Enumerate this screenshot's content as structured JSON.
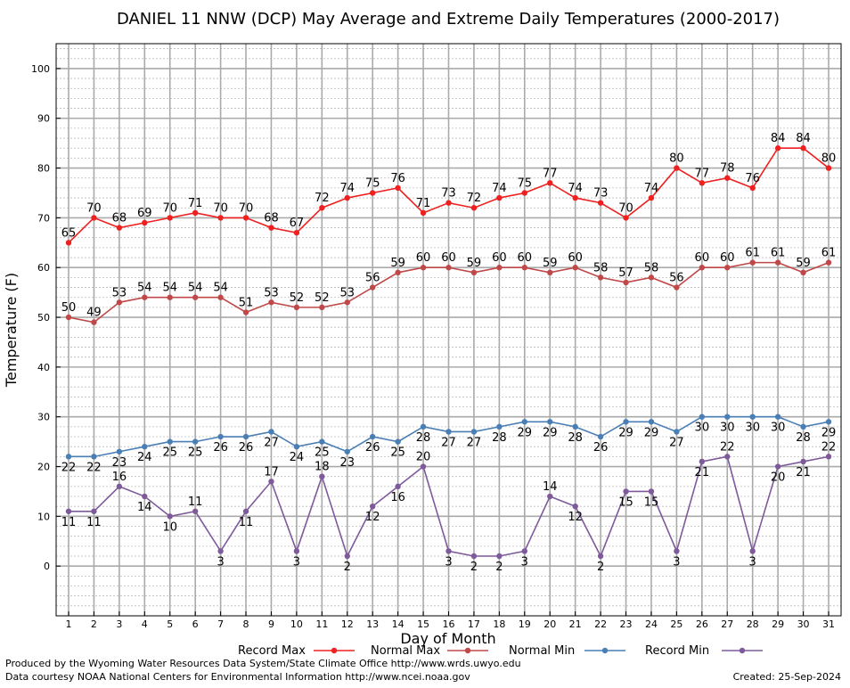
{
  "chart_data": {
    "type": "line",
    "title": "DANIEL 11 NNW (DCP) May Average and Extreme Daily Temperatures (2000-2017)",
    "xlabel": "Day of Month",
    "ylabel": "Temperature (F)",
    "x": [
      1,
      2,
      3,
      4,
      5,
      6,
      7,
      8,
      9,
      10,
      11,
      12,
      13,
      14,
      15,
      16,
      17,
      18,
      19,
      20,
      21,
      22,
      23,
      24,
      25,
      26,
      27,
      28,
      29,
      30,
      31
    ],
    "ylim": [
      -10,
      105
    ],
    "yticks": [
      0,
      10,
      20,
      30,
      40,
      50,
      60,
      70,
      80,
      90,
      100
    ],
    "grid": true,
    "legend_position": "bottom",
    "series": [
      {
        "name": "Record Max",
        "color": "#ee2020",
        "values": [
          65,
          70,
          68,
          69,
          70,
          71,
          70,
          70,
          68,
          67,
          72,
          74,
          75,
          76,
          71,
          73,
          72,
          74,
          75,
          77,
          74,
          73,
          70,
          74,
          80,
          77,
          78,
          76,
          84,
          84,
          80
        ]
      },
      {
        "name": "Normal Max",
        "color": "#c04848",
        "values": [
          50,
          49,
          53,
          54,
          54,
          54,
          54,
          51,
          53,
          52,
          52,
          53,
          56,
          59,
          60,
          60,
          59,
          60,
          60,
          59,
          60,
          58,
          57,
          58,
          56,
          60,
          60,
          61,
          61,
          59,
          61
        ]
      },
      {
        "name": "Normal Min",
        "color": "#4a7fb5",
        "values": [
          22,
          22,
          23,
          24,
          25,
          25,
          26,
          26,
          27,
          24,
          25,
          23,
          26,
          25,
          28,
          27,
          27,
          28,
          29,
          29,
          28,
          26,
          29,
          29,
          27,
          30,
          30,
          30,
          30,
          28,
          29
        ]
      },
      {
        "name": "Record Min",
        "color": "#7e5a9b",
        "values": [
          11,
          11,
          16,
          14,
          10,
          11,
          3,
          11,
          17,
          3,
          18,
          2,
          12,
          16,
          20,
          3,
          2,
          2,
          3,
          14,
          12,
          2,
          15,
          15,
          3,
          21,
          22,
          3,
          20,
          21,
          22
        ]
      }
    ]
  },
  "footer": {
    "produced_by": "Produced by the Wyoming Water Resources Data System/State Climate Office http://www.wrds.uwyo.edu",
    "courtesy": "Data courtesy NOAA National Centers for Environmental Information http://www.ncei.noaa.gov",
    "created": "Created:  25-Sep-2024"
  }
}
